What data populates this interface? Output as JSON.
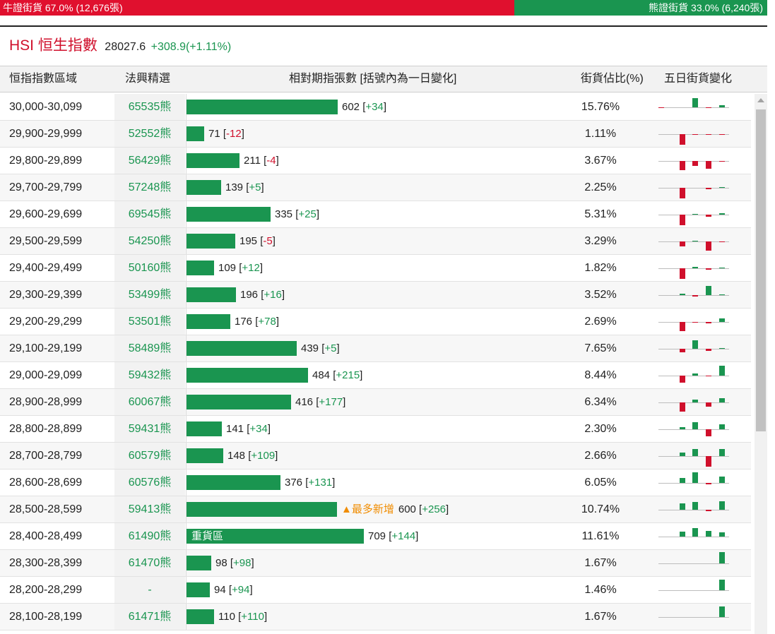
{
  "topbar": {
    "bull_label": "牛證街貨 67.0% (12,676張)",
    "bear_label": "熊證街貨 33.0% (6,240張)",
    "bull_ratio": 0.67,
    "bull_color": "#e0102e",
    "bear_color": "#1a9550"
  },
  "index": {
    "name": "HSI 恒生指數",
    "value": "28027.6",
    "change": "+308.9(+1.11%)"
  },
  "columns": {
    "range": "恒指指數區域",
    "code": "法興精選",
    "contracts": "相對期指張數 [括號內為一日變化]",
    "pct": "街貨佔比(%)",
    "five_day": "五日街貨變化"
  },
  "rows": [
    {
      "range": "30,000-30,099",
      "code": "65535熊",
      "value": 602,
      "qty": "602",
      "change": "+34",
      "pct": "15.76%",
      "tag": "",
      "note": "",
      "five_day": [
        -1,
        0,
        13,
        -1,
        3
      ]
    },
    {
      "range": "29,900-29,999",
      "code": "52552熊",
      "value": 71,
      "qty": "71",
      "change": "-12",
      "pct": "1.11%",
      "tag": "",
      "note": "",
      "five_day": [
        0,
        -15,
        -1,
        -1,
        -1
      ]
    },
    {
      "range": "29,800-29,899",
      "code": "56429熊",
      "value": 211,
      "qty": "211",
      "change": "-4",
      "pct": "3.67%",
      "tag": "",
      "note": "",
      "five_day": [
        0,
        -13,
        -7,
        -11,
        -1
      ]
    },
    {
      "range": "29,700-29,799",
      "code": "57248熊",
      "value": 139,
      "qty": "139",
      "change": "+5",
      "pct": "2.25%",
      "tag": "",
      "note": "",
      "five_day": [
        0,
        -15,
        0,
        -2,
        1
      ]
    },
    {
      "range": "29,600-29,699",
      "code": "69545熊",
      "value": 335,
      "qty": "335",
      "change": "+25",
      "pct": "5.31%",
      "tag": "",
      "note": "",
      "five_day": [
        0,
        -15,
        1,
        -3,
        2
      ]
    },
    {
      "range": "29,500-29,599",
      "code": "54250熊",
      "value": 195,
      "qty": "195",
      "change": "-5",
      "pct": "3.29%",
      "tag": "",
      "note": "",
      "five_day": [
        0,
        -7,
        1,
        -13,
        -1
      ]
    },
    {
      "range": "29,400-29,499",
      "code": "50160熊",
      "value": 109,
      "qty": "109",
      "change": "+12",
      "pct": "1.82%",
      "tag": "",
      "note": "",
      "five_day": [
        0,
        -15,
        2,
        -2,
        1
      ]
    },
    {
      "range": "29,300-29,399",
      "code": "53499熊",
      "value": 196,
      "qty": "196",
      "change": "+16",
      "pct": "3.52%",
      "tag": "",
      "note": "",
      "five_day": [
        0,
        2,
        -2,
        13,
        1
      ]
    },
    {
      "range": "29,200-29,299",
      "code": "53501熊",
      "value": 176,
      "qty": "176",
      "change": "+78",
      "pct": "2.69%",
      "tag": "",
      "note": "",
      "five_day": [
        0,
        -13,
        -1,
        -2,
        5
      ]
    },
    {
      "range": "29,100-29,199",
      "code": "58489熊",
      "value": 439,
      "qty": "439",
      "change": "+5",
      "pct": "7.65%",
      "tag": "",
      "note": "",
      "five_day": [
        0,
        -5,
        12,
        -3,
        1
      ]
    },
    {
      "range": "29,000-29,099",
      "code": "59432熊",
      "value": 484,
      "qty": "484",
      "change": "+215",
      "pct": "8.44%",
      "tag": "",
      "note": "",
      "five_day": [
        0,
        -10,
        3,
        -1,
        14
      ]
    },
    {
      "range": "28,900-28,999",
      "code": "60067熊",
      "value": 416,
      "qty": "416",
      "change": "+177",
      "pct": "6.34%",
      "tag": "",
      "note": "",
      "five_day": [
        0,
        -13,
        4,
        -6,
        6
      ]
    },
    {
      "range": "28,800-28,899",
      "code": "59431熊",
      "value": 141,
      "qty": "141",
      "change": "+34",
      "pct": "2.30%",
      "tag": "",
      "note": "",
      "five_day": [
        0,
        3,
        10,
        -10,
        7
      ]
    },
    {
      "range": "28,700-28,799",
      "code": "60579熊",
      "value": 148,
      "qty": "148",
      "change": "+109",
      "pct": "2.66%",
      "tag": "",
      "note": "",
      "five_day": [
        0,
        5,
        10,
        -15,
        10
      ]
    },
    {
      "range": "28,600-28,699",
      "code": "60576熊",
      "value": 376,
      "qty": "376",
      "change": "+131",
      "pct": "6.05%",
      "tag": "",
      "note": "",
      "five_day": [
        0,
        7,
        15,
        -2,
        9
      ]
    },
    {
      "range": "28,500-28,599",
      "code": "59413熊",
      "value": 600,
      "qty": "600",
      "change": "+256",
      "pct": "10.74%",
      "tag": "▲最多新增",
      "note": "",
      "five_day": [
        0,
        9,
        11,
        -2,
        12
      ]
    },
    {
      "range": "28,400-28,499",
      "code": "61490熊",
      "value": 709,
      "qty": "709",
      "change": "+144",
      "pct": "11.61%",
      "tag": "",
      "note": "重貨區",
      "five_day": [
        0,
        7,
        12,
        8,
        6
      ]
    },
    {
      "range": "28,300-28,399",
      "code": "61470熊",
      "value": 98,
      "qty": "98",
      "change": "+98",
      "pct": "1.67%",
      "tag": "",
      "note": "",
      "five_day": [
        0,
        0,
        0,
        0,
        16
      ]
    },
    {
      "range": "28,200-28,299",
      "code": "-",
      "value": 94,
      "qty": "94",
      "change": "+94",
      "pct": "1.46%",
      "tag": "",
      "note": "",
      "five_day": [
        0,
        0,
        0,
        0,
        15
      ]
    },
    {
      "range": "28,100-28,199",
      "code": "61471熊",
      "value": 110,
      "qty": "110",
      "change": "+110",
      "pct": "1.67%",
      "tag": "",
      "note": "",
      "five_day": [
        0,
        0,
        0,
        0,
        15
      ]
    }
  ]
}
